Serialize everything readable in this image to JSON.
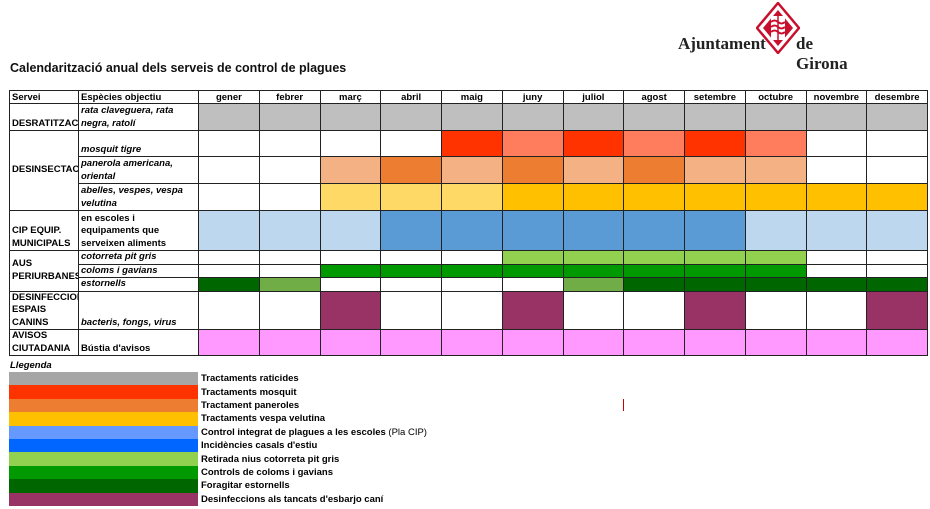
{
  "header": {
    "logo_left": "Ajuntament",
    "logo_right": "de Girona",
    "title": "Calendarització anual dels serveis de control de plagues"
  },
  "table": {
    "col_servei": "Servei",
    "col_especies": "Espècies objectiu",
    "months": [
      "gener",
      "febrer",
      "març",
      "abril",
      "maig",
      "juny",
      "juliol",
      "agost",
      "setembre",
      "octubre",
      "novembre",
      "desembre"
    ],
    "colors": {
      "W": "#ffffff",
      "G": "#bfbfbf",
      "R": "#ff3300",
      "S": "#ff7c5c",
      "L": "#f4b183",
      "O": "#ed7d31",
      "Y": "#ffd966",
      "A": "#ffc000",
      "B": "#bdd7ee",
      "M": "#5b9bd5",
      "C": "#92d050",
      "D": "#009900",
      "E": "#006600",
      "F": "#70ad47",
      "P": "#993366",
      "K": "#ff99ff"
    },
    "groups": [
      {
        "servei": "DESRATITZACIÓ",
        "rows": [
          {
            "especies": "rata claveguera, rata negra, ratolí",
            "italic": true,
            "h": 27,
            "cells": "GGGGGGGGGGGG"
          }
        ]
      },
      {
        "servei": "DESINSECTACIÓ",
        "rows": [
          {
            "especies": "mosquit tigre",
            "italic": true,
            "h": 26,
            "cells": "WWWWRSRSRSWW"
          },
          {
            "especies": "panerola americana, oriental",
            "italic": true,
            "h": 27,
            "cells": "WWLOLOLOLLWW"
          },
          {
            "especies": "abelles, vespes, vespa velutina",
            "italic": true,
            "h": 27,
            "cells": "WWYYYAAAAAAA"
          }
        ]
      },
      {
        "servei": "CIP EQUIP. MUNICIPALS",
        "rows": [
          {
            "especies": "en escoles i equipaments que serveixen aliments",
            "italic": false,
            "h": 40,
            "cells": "BBBMMMMMMBBB"
          }
        ]
      },
      {
        "servei": "AUS PERIURBANES",
        "rows": [
          {
            "especies": "cotorreta pit gris",
            "italic": true,
            "h": 13,
            "cells": "WWWWWCCCCCWW"
          },
          {
            "especies": "coloms i gavians",
            "italic": true,
            "h": 13,
            "cells": "WWDDDDDDDDWW"
          },
          {
            "especies": "estornells",
            "italic": true,
            "h": 13,
            "cells": "EFWWWWFEEEEE"
          }
        ]
      },
      {
        "servei": "DESINFECCIONS ESPAIS CANINS",
        "rows": [
          {
            "especies": "bacteris, fongs, virus",
            "italic": true,
            "h": 26,
            "cells": "WWPWWPWWPWWP"
          }
        ]
      },
      {
        "servei": "AVISOS CIUTADANIA",
        "rows": [
          {
            "especies": "Bústia d'avisos",
            "italic": false,
            "h": 26,
            "cells": "KKKKKKKKKKKK"
          }
        ]
      }
    ]
  },
  "legend": {
    "title": "Llegenda",
    "items": [
      {
        "label": "Tractaments raticides",
        "color": "#a6a6a6"
      },
      {
        "label": "Tractaments mosquit",
        "color": "#ff3300"
      },
      {
        "label": "Tractament paneroles",
        "color": "#ed7d31"
      },
      {
        "label": "Tractaments vespa velutina",
        "color": "#ffc000"
      },
      {
        "label": "Control integrat de plagues a les escoles",
        "suffix": " (Pla CIP)",
        "color": "#6699ff"
      },
      {
        "label": "Incidències casals d'estiu",
        "color": "#0066ff"
      },
      {
        "label": "Retirada nius cotorreta pit gris",
        "color": "#92d050"
      },
      {
        "label": "Controls de coloms i gavians",
        "color": "#009900"
      },
      {
        "label": "Foragitar estornells",
        "color": "#006600"
      },
      {
        "label": "Desinfeccions als tancats d'esbarjo caní",
        "color": "#993366"
      }
    ]
  }
}
